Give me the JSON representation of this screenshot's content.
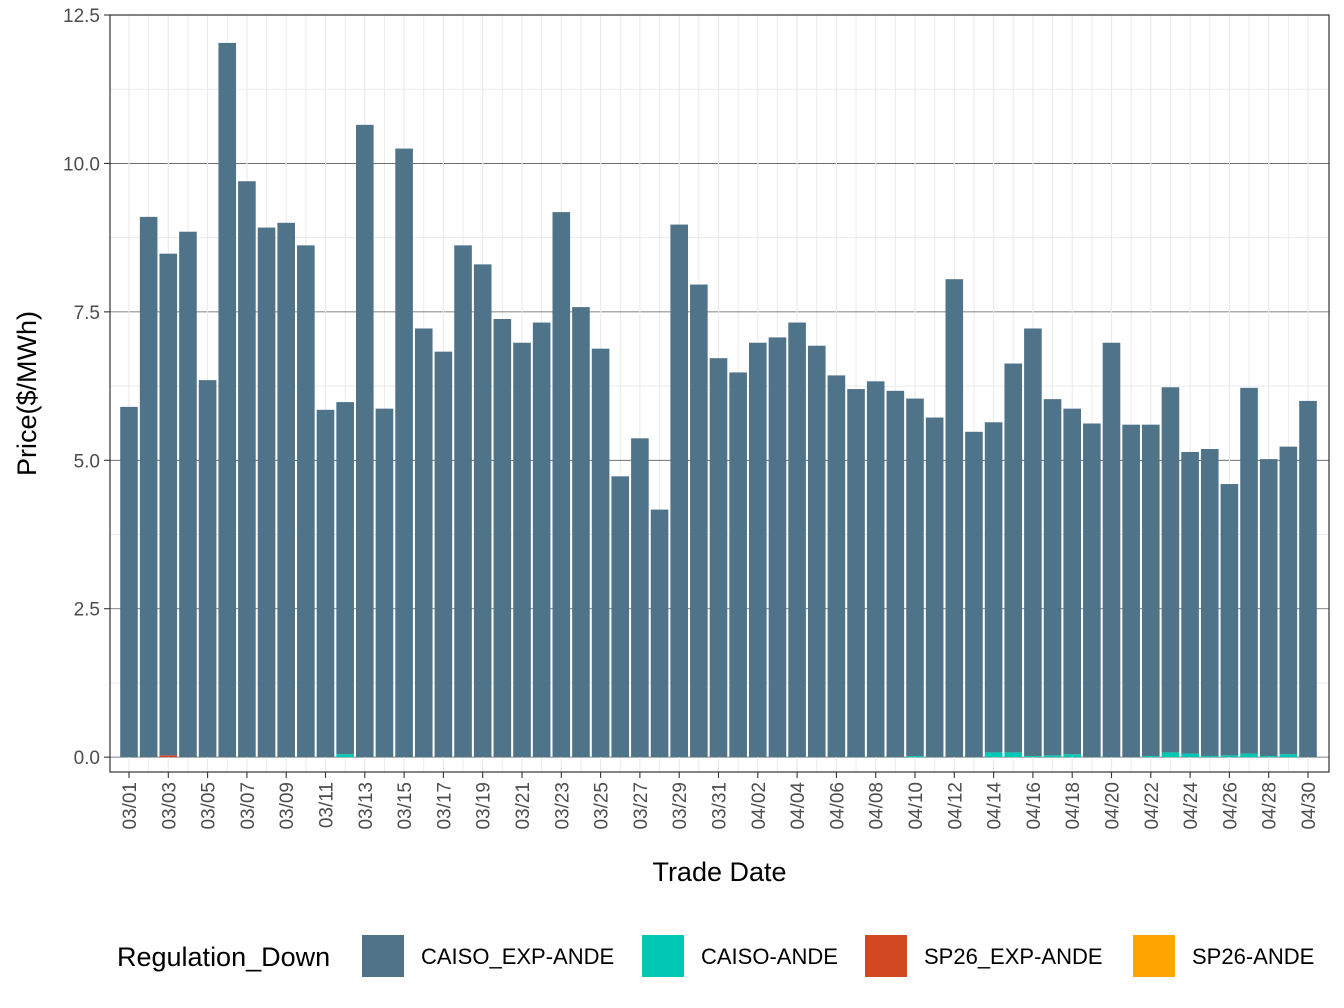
{
  "chart_data": {
    "type": "bar",
    "stacked": true,
    "xlabel": "Trade Date",
    "ylabel": "Price($/MWh)",
    "ylim": [
      -0.25,
      12.5
    ],
    "yticks": [
      0.0,
      2.5,
      5.0,
      7.5,
      10.0,
      12.5
    ],
    "ytick_labels": [
      "0.0",
      "2.5",
      "5.0",
      "7.5",
      "10.0",
      "12.5"
    ],
    "xtick_labels": [
      "03/01",
      "03/03",
      "03/05",
      "03/07",
      "03/09",
      "03/11",
      "03/13",
      "03/15",
      "03/17",
      "03/19",
      "03/21",
      "03/23",
      "03/25",
      "03/27",
      "03/29",
      "03/31",
      "04/02",
      "04/04",
      "04/06",
      "04/08",
      "04/10",
      "04/12",
      "04/14",
      "04/16",
      "04/18",
      "04/20",
      "04/22",
      "04/24",
      "04/26",
      "04/28",
      "04/30"
    ],
    "grid": true,
    "legend": {
      "title": "Regulation_Down",
      "position": "bottom"
    },
    "categories": [
      "03/01",
      "03/02",
      "03/03",
      "03/04",
      "03/05",
      "03/06",
      "03/07",
      "03/08",
      "03/09",
      "03/10",
      "03/11",
      "03/12",
      "03/13",
      "03/14",
      "03/15",
      "03/16",
      "03/17",
      "03/18",
      "03/19",
      "03/20",
      "03/21",
      "03/22",
      "03/23",
      "03/24",
      "03/25",
      "03/26",
      "03/27",
      "03/28",
      "03/29",
      "03/30",
      "03/31",
      "04/01",
      "04/02",
      "04/03",
      "04/04",
      "04/05",
      "04/06",
      "04/07",
      "04/08",
      "04/09",
      "04/10",
      "04/11",
      "04/12",
      "04/13",
      "04/14",
      "04/15",
      "04/16",
      "04/17",
      "04/18",
      "04/19",
      "04/20",
      "04/21",
      "04/22",
      "04/23",
      "04/24",
      "04/25",
      "04/26",
      "04/27",
      "04/28",
      "04/29",
      "04/30"
    ],
    "series": [
      {
        "name": "SP26_EXP-ANDE",
        "color": "#d24823",
        "values": [
          0,
          0,
          0.03,
          0,
          0,
          0,
          0,
          0,
          0,
          0,
          0,
          0,
          0,
          0,
          0,
          0,
          0,
          0,
          0,
          0,
          0,
          0,
          0,
          0,
          0,
          0,
          0,
          0,
          0,
          0,
          0,
          0,
          0,
          0,
          0,
          0,
          0,
          0,
          0,
          0,
          0,
          0,
          0,
          0,
          0,
          0,
          0,
          0,
          0,
          0,
          0,
          0,
          0,
          0,
          0,
          0,
          0,
          0,
          0,
          0,
          0
        ]
      },
      {
        "name": "SP26-ANDE",
        "color": "#ffa500",
        "values": [
          0,
          0,
          0,
          0,
          0,
          0,
          0,
          0,
          0,
          0,
          0,
          0,
          0,
          0,
          0,
          0,
          0,
          0,
          0,
          0,
          0,
          0,
          0,
          0,
          0,
          0,
          0,
          0,
          0,
          0,
          0,
          0,
          0,
          0,
          0,
          0,
          0,
          0,
          0,
          0,
          0,
          0,
          0,
          0,
          0,
          0,
          0,
          0,
          0,
          0,
          0,
          0,
          0,
          0,
          0,
          0,
          0,
          0,
          0,
          0,
          0
        ]
      },
      {
        "name": "CAISO-ANDE",
        "color": "#00c8b4",
        "values": [
          0,
          0,
          0,
          0,
          0,
          0,
          0,
          0,
          0,
          0,
          0,
          0.05,
          0,
          0,
          0,
          0,
          0,
          0,
          0,
          0,
          0,
          0,
          0,
          0,
          0,
          0,
          0,
          0,
          0,
          0,
          0,
          0,
          0,
          0,
          0,
          0,
          0,
          0,
          0,
          0,
          0.02,
          0,
          0,
          0,
          0.08,
          0.08,
          0.02,
          0.03,
          0.05,
          0,
          0,
          0,
          0.02,
          0.08,
          0.06,
          0.02,
          0.03,
          0.06,
          0.02,
          0.05,
          0
        ]
      },
      {
        "name": "CAISO_EXP-ANDE",
        "color": "#4f7388",
        "values": [
          5.9,
          9.1,
          8.45,
          8.85,
          6.35,
          12.03,
          9.7,
          8.92,
          9.0,
          8.62,
          5.85,
          5.93,
          10.65,
          5.87,
          10.25,
          7.22,
          6.83,
          8.62,
          8.3,
          7.38,
          6.98,
          7.32,
          9.18,
          7.58,
          6.88,
          4.73,
          5.37,
          4.17,
          8.97,
          7.96,
          6.72,
          6.48,
          6.98,
          7.07,
          7.32,
          6.93,
          6.43,
          6.2,
          6.33,
          6.17,
          6.02,
          5.72,
          8.05,
          5.48,
          5.56,
          6.55,
          7.2,
          6.0,
          5.82,
          5.62,
          6.98,
          5.6,
          5.58,
          6.15,
          5.08,
          5.17,
          4.57,
          6.16,
          5.0,
          5.18,
          6.0
        ]
      }
    ]
  },
  "legend_items": [
    {
      "label": "CAISO_EXP-ANDE",
      "color": "#4f7388"
    },
    {
      "label": "CAISO-ANDE",
      "color": "#00c8b4"
    },
    {
      "label": "SP26_EXP-ANDE",
      "color": "#d24823"
    },
    {
      "label": "SP26-ANDE",
      "color": "#ffa500"
    }
  ]
}
